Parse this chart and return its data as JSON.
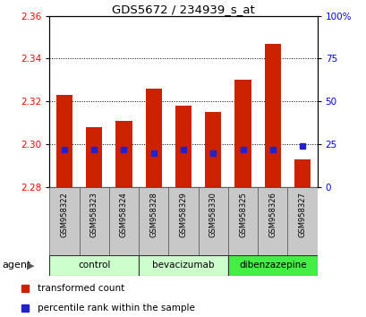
{
  "title": "GDS5672 / 234939_s_at",
  "samples": [
    "GSM958322",
    "GSM958323",
    "GSM958324",
    "GSM958328",
    "GSM958329",
    "GSM958330",
    "GSM958325",
    "GSM958326",
    "GSM958327"
  ],
  "bar_values": [
    2.323,
    2.308,
    2.311,
    2.326,
    2.318,
    2.315,
    2.33,
    2.347,
    2.293
  ],
  "bar_base": 2.28,
  "percentile_values": [
    22,
    22,
    22,
    20,
    22,
    20,
    22,
    22,
    24
  ],
  "ylim": [
    2.28,
    2.36
  ],
  "yticks": [
    2.28,
    2.3,
    2.32,
    2.34,
    2.36
  ],
  "right_yticks": [
    0,
    25,
    50,
    75,
    100
  ],
  "right_ylabels": [
    "0",
    "25",
    "50",
    "75",
    "100%"
  ],
  "groups": [
    {
      "label": "control",
      "indices": [
        0,
        1,
        2
      ],
      "color": "#ccffcc"
    },
    {
      "label": "bevacizumab",
      "indices": [
        3,
        4,
        5
      ],
      "color": "#ccffcc"
    },
    {
      "label": "dibenzazepine",
      "indices": [
        6,
        7,
        8
      ],
      "color": "#44ee44"
    }
  ],
  "bar_color": "#cc2200",
  "blue_color": "#2222cc",
  "bar_width": 0.55,
  "background_color": "#ffffff",
  "plot_bg": "#ffffff",
  "sample_box_color": "#c8c8c8",
  "agent_label": "agent",
  "legend_items": [
    {
      "label": "transformed count",
      "color": "#cc2200",
      "marker": "s"
    },
    {
      "label": "percentile rank within the sample",
      "color": "#2222cc",
      "marker": "s"
    }
  ]
}
